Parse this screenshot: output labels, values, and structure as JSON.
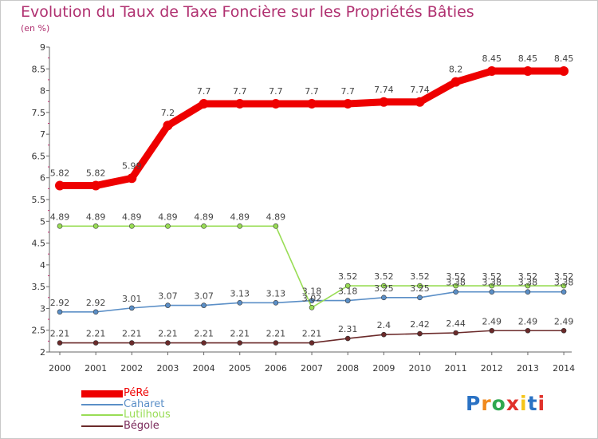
{
  "title": "Evolution du Taux de Taxe Foncière sur les Propriétés Bâties",
  "subtitle": "(en %)",
  "logo": {
    "text": "Proxiti",
    "letter_colors": [
      "#2a72c4",
      "#f08a1e",
      "#2fa84f",
      "#e0312b",
      "#f5c518",
      "#2a72c4",
      "#e0312b"
    ]
  },
  "chart_data": {
    "type": "line",
    "title": "Evolution du Taux de Taxe Foncière sur les Propriétés Bâties",
    "ylabel": "(en %)",
    "xlabel": "",
    "ylim": [
      2,
      9
    ],
    "y_ticks": [
      "2",
      "2.5",
      "3",
      "3.5",
      "4",
      "4.5",
      "5",
      "5.5",
      "6",
      "6.5",
      "7",
      "7.5",
      "8",
      "8.5",
      "9"
    ],
    "categories": [
      "2000",
      "2001",
      "2002",
      "2003",
      "2004",
      "2005",
      "2006",
      "2007",
      "2008",
      "2009",
      "2010",
      "2011",
      "2012",
      "2013",
      "2014"
    ],
    "grid": false,
    "legend_position": "bottom-left",
    "series": [
      {
        "name": "PéRé",
        "color": "#ee0000",
        "values": [
          5.82,
          5.82,
          5.99,
          7.2,
          7.7,
          7.7,
          7.7,
          7.7,
          7.7,
          7.74,
          7.74,
          8.2,
          8.45,
          8.45,
          8.45
        ],
        "labels": [
          "5.82",
          "5.82",
          "5.99",
          "7.2",
          "7.7",
          "7.7",
          "7.7",
          "7.7",
          "7.7",
          "7.74",
          "7.74",
          "8.2",
          "8.45",
          "8.45",
          "8.45"
        ]
      },
      {
        "name": "Caharet",
        "color": "#5b8fc7",
        "values": [
          2.92,
          2.92,
          3.01,
          3.07,
          3.07,
          3.13,
          3.13,
          3.18,
          3.18,
          3.25,
          3.25,
          3.38,
          3.38,
          3.38,
          3.38
        ],
        "labels": [
          "2.92",
          "2.92",
          "3.01",
          "3.07",
          "3.07",
          "3.13",
          "3.13",
          "3.18",
          "3.18",
          "3.25",
          "3.25",
          "3.38",
          "3.38",
          "3.38",
          "3.38"
        ]
      },
      {
        "name": "Lutilhous",
        "color": "#99dd55",
        "values": [
          4.89,
          4.89,
          4.89,
          4.89,
          4.89,
          4.89,
          4.89,
          3.02,
          3.52,
          3.52,
          3.52,
          3.52,
          3.52,
          3.52,
          3.52
        ],
        "labels": [
          "4.89",
          "4.89",
          "4.89",
          "4.89",
          "4.89",
          "4.89",
          "4.89",
          "3.02",
          "3.52",
          "3.52",
          "3.52",
          "3.52",
          "3.52",
          "3.52",
          "3.52"
        ]
      },
      {
        "name": "Bégole",
        "color": "#6b2a2a",
        "values": [
          2.21,
          2.21,
          2.21,
          2.21,
          2.21,
          2.21,
          2.21,
          2.21,
          2.31,
          2.4,
          2.42,
          2.44,
          2.49,
          2.49,
          2.49
        ],
        "labels": [
          "2.21",
          "2.21",
          "2.21",
          "2.21",
          "2.21",
          "2.21",
          "2.21",
          "2.21",
          "2.31",
          "2.4",
          "2.42",
          "2.44",
          "2.49",
          "2.49",
          "2.49"
        ]
      }
    ]
  }
}
